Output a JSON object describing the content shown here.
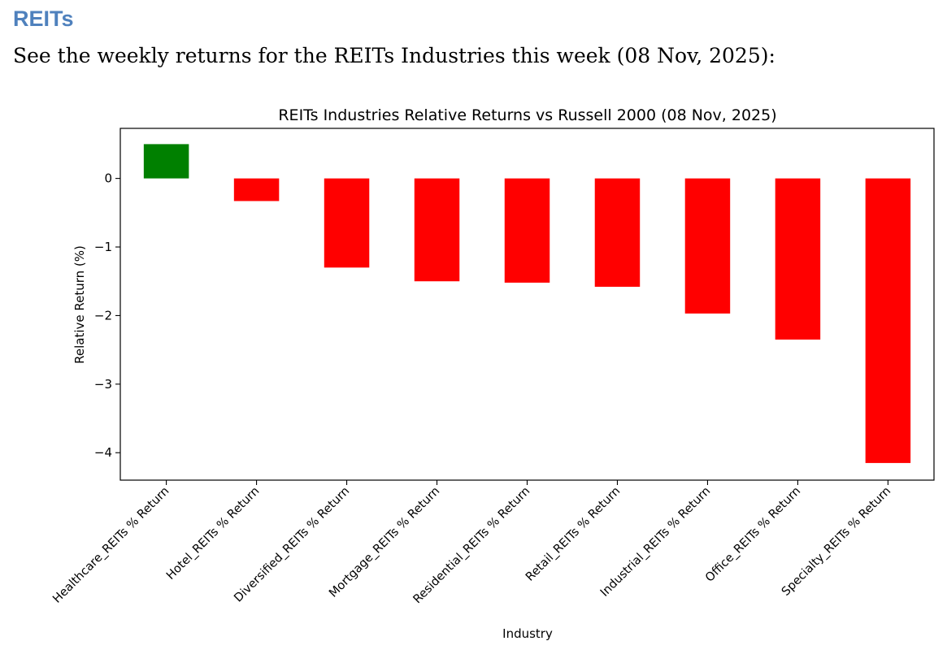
{
  "heading": "REITs",
  "intro": "See the weekly returns for the REITs Industries this week (08 Nov, 2025):",
  "chart_data": {
    "type": "bar",
    "title": "REITs Industries Relative Returns vs Russell 2000 (08 Nov, 2025)",
    "xlabel": "Industry",
    "ylabel": "Relative Return (%)",
    "categories": [
      "Healthcare_REITs % Return",
      "Hotel_REITs % Return",
      "Diversified_REITs % Return",
      "Mortgage_REITs % Return",
      "Residential_REITs % Return",
      "Retail_REITs % Return",
      "Industrial_REITs % Return",
      "Office_REITs % Return",
      "Specialty_REITs % Return"
    ],
    "values": [
      0.5,
      -0.33,
      -1.3,
      -1.5,
      -1.52,
      -1.58,
      -1.97,
      -2.35,
      -4.15
    ],
    "ylim": [
      -4.4,
      0.73
    ],
    "yticks": [
      0,
      -1,
      -2,
      -3,
      -4
    ],
    "ytick_labels": [
      "0",
      "−1",
      "−2",
      "−3",
      "−4"
    ],
    "grid": false,
    "positive_color": "#008000",
    "negative_color": "#ff0000"
  }
}
